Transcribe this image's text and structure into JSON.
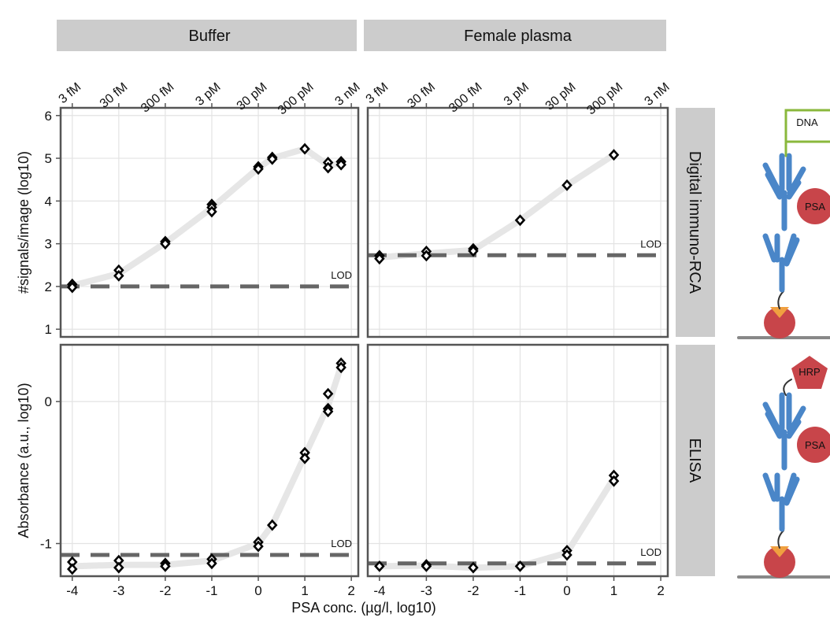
{
  "chart_data": {
    "xlabel": "PSA conc. (µg/l, log10)",
    "columns": [
      {
        "title": "Buffer"
      },
      {
        "title": "Female plasma"
      }
    ],
    "xlim": [
      -4.25,
      2.15
    ],
    "xticks": [
      -4,
      -3,
      -2,
      -1,
      0,
      1,
      2
    ],
    "top_xticks": [
      {
        "value": -4,
        "label": "3 fM"
      },
      {
        "value": -3,
        "label": "30 fM"
      },
      {
        "value": -2,
        "label": "300 fM"
      },
      {
        "value": -1,
        "label": "3 pM"
      },
      {
        "value": 0,
        "label": "30 pM"
      },
      {
        "value": 1,
        "label": "300 pM"
      },
      {
        "value": 2,
        "label": "3 nM"
      }
    ],
    "rows": [
      {
        "title": "Digital immuno-RCA",
        "ylabel": "#signals/image (log10)",
        "ylim": [
          0.82,
          6.18
        ],
        "yticks": [
          1,
          2,
          3,
          4,
          5,
          6
        ],
        "panels": [
          {
            "type": "scatter",
            "lod": 2.0,
            "lod_label": "LOD",
            "points": {
              "x": [
                -4,
                -4,
                -3,
                -3,
                -2,
                -2,
                -1,
                -1,
                -1,
                0,
                0,
                0.3,
                0.3,
                1,
                1.5,
                1.5,
                1.78,
                1.78
              ],
              "values": [
                2.05,
                1.98,
                2.38,
                2.25,
                3.05,
                3.0,
                3.92,
                3.85,
                3.75,
                4.8,
                4.75,
                5.02,
                4.98,
                5.22,
                4.9,
                4.78,
                4.92,
                4.85
              ]
            },
            "trend": {
              "x": [
                -4,
                -3,
                -2,
                -1,
                0,
                0.3,
                1,
                1.5,
                1.78
              ],
              "values": [
                2.02,
                2.3,
                3.02,
                3.84,
                4.77,
                5.0,
                5.22,
                4.84,
                4.88
              ]
            }
          },
          {
            "type": "scatter",
            "lod": 2.73,
            "lod_label": "LOD",
            "points": {
              "x": [
                -4,
                -4,
                -3,
                -3,
                -2,
                -2,
                -1,
                0,
                1
              ],
              "values": [
                2.72,
                2.65,
                2.82,
                2.72,
                2.88,
                2.83,
                3.55,
                4.37,
                5.08
              ]
            },
            "trend": {
              "x": [
                -4,
                -3,
                -2,
                -1,
                0,
                1
              ],
              "values": [
                2.68,
                2.77,
                2.85,
                3.55,
                4.37,
                5.08
              ]
            }
          }
        ]
      },
      {
        "title": "ELISA",
        "ylabel": "Absorbance (a.u., log10)",
        "ylim": [
          -1.23,
          0.4
        ],
        "yticks": [
          -1,
          0
        ],
        "panels": [
          {
            "type": "scatter",
            "lod": -1.08,
            "lod_label": "LOD",
            "points": {
              "x": [
                -4,
                -4,
                -3,
                -3,
                -2,
                -2,
                -1,
                -1,
                0,
                0,
                0.3,
                1,
                1,
                1.5,
                1.5,
                1.5,
                1.78,
                1.78
              ],
              "values": [
                -1.13,
                -1.18,
                -1.12,
                -1.17,
                -1.14,
                -1.16,
                -1.11,
                -1.14,
                -0.99,
                -1.02,
                -0.87,
                -0.36,
                -0.4,
                0.055,
                -0.05,
                -0.07,
                0.27,
                0.24
              ]
            },
            "trend": {
              "x": [
                -4,
                -3,
                -2,
                -1,
                0,
                0.3,
                1,
                1.5,
                1.78
              ],
              "values": [
                -1.16,
                -1.15,
                -1.15,
                -1.12,
                -1.0,
                -0.87,
                -0.38,
                -0.03,
                0.25
              ]
            }
          },
          {
            "type": "scatter",
            "lod": -1.14,
            "lod_label": "LOD",
            "points": {
              "x": [
                -4,
                -3,
                -3,
                -2,
                -1,
                0,
                0,
                1,
                1
              ],
              "values": [
                -1.16,
                -1.15,
                -1.16,
                -1.17,
                -1.16,
                -1.05,
                -1.08,
                -0.52,
                -0.56
              ]
            },
            "trend": {
              "x": [
                -4,
                -3,
                -2,
                -1,
                0,
                1
              ],
              "values": [
                -1.16,
                -1.155,
                -1.17,
                -1.16,
                -1.065,
                -0.54
              ]
            }
          }
        ]
      }
    ]
  },
  "diagram": {
    "top": {
      "tag": "DNA",
      "antigen": "PSA"
    },
    "bottom": {
      "tag": "HRP",
      "antigen": "PSA"
    }
  }
}
